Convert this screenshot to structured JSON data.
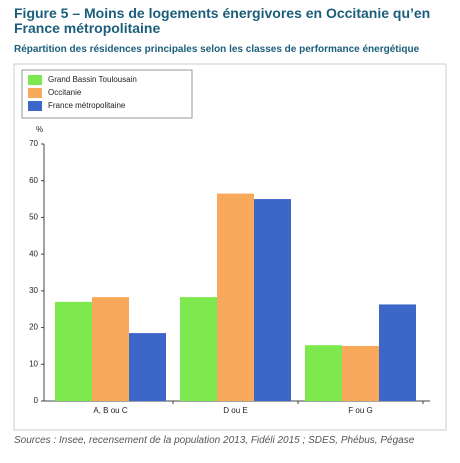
{
  "chart_data": {
    "type": "bar",
    "title": "Figure 5 – Moins de logements énergivores en Occitanie qu’en France métropolitaine",
    "subtitle": "Répartition des résidences principales selon les classes de performance énergétique",
    "y_label": "%",
    "categories": [
      "A, B ou C",
      "D ou E",
      "F ou G"
    ],
    "series": [
      {
        "name": "Grand Bassin Toulousain",
        "color": "#7ee84f",
        "values": [
          27,
          28.3,
          15.2
        ]
      },
      {
        "name": "Occitanie",
        "color": "#f9a95b",
        "values": [
          28.3,
          56.5,
          15
        ]
      },
      {
        "name": "France métropolitaine",
        "color": "#3d66c9",
        "values": [
          18.5,
          55,
          26.3
        ]
      }
    ],
    "ylim": [
      0,
      70
    ],
    "yticks": [
      0,
      10,
      20,
      30,
      40,
      50,
      60,
      70
    ],
    "grid": false,
    "legend": "top-left",
    "source": "Sources : Insee, recensement de la population 2013, Fidéli 2015 ; SDES, Phébus, Pégase"
  }
}
